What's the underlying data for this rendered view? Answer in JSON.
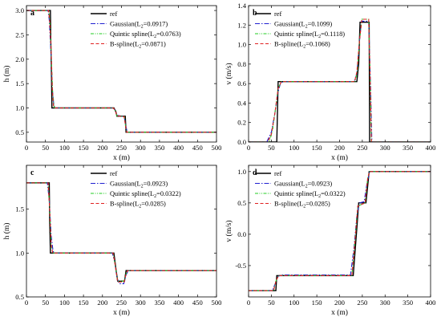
{
  "colors": {
    "ref": "#000000",
    "gaussian": "#1f1fd0",
    "quintic": "#22cc22",
    "bspline": "#e02020"
  },
  "chart_data": [
    {
      "type": "line",
      "panel_label": "a",
      "xlabel": "x (m)",
      "ylabel": "h (m)",
      "xlim": [
        0,
        500
      ],
      "ylim": [
        0.3,
        3.1
      ],
      "xticks": [
        0,
        50,
        100,
        150,
        200,
        250,
        300,
        350,
        400,
        450,
        500
      ],
      "yticks": [
        0.5,
        1.0,
        1.5,
        2.0,
        2.5,
        3.0
      ],
      "ytick_labels": [
        "0.5",
        "1.0",
        "1.5",
        "2.0",
        "2.5",
        "3.0"
      ],
      "legend_position": "top-center",
      "series": [
        {
          "name": "ref",
          "style": "ref",
          "points": [
            [
              0,
              3.0
            ],
            [
              63,
              3.0
            ],
            [
              64,
              2.4
            ],
            [
              66,
              1.6
            ],
            [
              67,
              1.0
            ],
            [
              230,
              1.0
            ],
            [
              235,
              0.93
            ],
            [
              238,
              0.83
            ],
            [
              260,
              0.83
            ],
            [
              262,
              0.5
            ],
            [
              500,
              0.5
            ]
          ]
        },
        {
          "name": "Gaussian",
          "l2": "0.0917",
          "style": "gaussian",
          "points": [
            [
              0,
              3.0
            ],
            [
              57,
              3.0
            ],
            [
              60,
              2.8
            ],
            [
              64,
              2.2
            ],
            [
              68,
              1.4
            ],
            [
              72,
              1.05
            ],
            [
              76,
              1.0
            ],
            [
              227,
              1.0
            ],
            [
              232,
              0.97
            ],
            [
              238,
              0.85
            ],
            [
              257,
              0.82
            ],
            [
              261,
              0.65
            ],
            [
              265,
              0.5
            ],
            [
              500,
              0.5
            ]
          ]
        },
        {
          "name": "Quintic spline",
          "l2": "0.0763",
          "style": "quintic",
          "points": [
            [
              0,
              3.0
            ],
            [
              59,
              3.0
            ],
            [
              62,
              2.7
            ],
            [
              65,
              2.1
            ],
            [
              69,
              1.3
            ],
            [
              73,
              1.02
            ],
            [
              76,
              1.0
            ],
            [
              228,
              1.0
            ],
            [
              233,
              0.96
            ],
            [
              238,
              0.84
            ],
            [
              258,
              0.82
            ],
            [
              261,
              0.6
            ],
            [
              264,
              0.5
            ],
            [
              500,
              0.5
            ]
          ]
        },
        {
          "name": "B-spline",
          "l2": "0.0871",
          "style": "bspline",
          "points": [
            [
              0,
              3.0
            ],
            [
              58,
              3.0
            ],
            [
              61,
              2.8
            ],
            [
              65,
              2.2
            ],
            [
              68,
              1.4
            ],
            [
              71,
              1.05
            ],
            [
              75,
              1.0
            ],
            [
              228,
              1.0
            ],
            [
              233,
              0.96
            ],
            [
              238,
              0.84
            ],
            [
              257,
              0.82
            ],
            [
              261,
              0.62
            ],
            [
              264,
              0.5
            ],
            [
              500,
              0.5
            ]
          ]
        }
      ]
    },
    {
      "type": "line",
      "panel_label": "b",
      "xlabel": "x (m)",
      "ylabel": "v (m/s)",
      "xlim": [
        0,
        400
      ],
      "ylim": [
        0.0,
        1.4
      ],
      "xticks": [
        0,
        50,
        100,
        150,
        200,
        250,
        300,
        350,
        400
      ],
      "yticks": [
        0.0,
        0.2,
        0.4,
        0.6,
        0.8,
        1.0,
        1.2,
        1.4
      ],
      "ytick_labels": [
        "0.0",
        "0.2",
        "0.4",
        "0.6",
        "0.8",
        "1.0",
        "1.2",
        "1.4"
      ],
      "legend_position": "top-left",
      "series": [
        {
          "name": "ref",
          "style": "ref",
          "points": [
            [
              0,
              0
            ],
            [
              62,
              0
            ],
            [
              63,
              0.2
            ],
            [
              65,
              0.62
            ],
            [
              238,
              0.62
            ],
            [
              242,
              0.8
            ],
            [
              245,
              1.23
            ],
            [
              265,
              1.23
            ],
            [
              266,
              0
            ],
            [
              400,
              0
            ]
          ]
        },
        {
          "name": "Gaussian",
          "l2": "0.1099",
          "style": "gaussian",
          "points": [
            [
              0,
              0
            ],
            [
              40,
              0
            ],
            [
              50,
              0.1
            ],
            [
              58,
              0.3
            ],
            [
              64,
              0.5
            ],
            [
              70,
              0.6
            ],
            [
              76,
              0.62
            ],
            [
              232,
              0.62
            ],
            [
              238,
              0.7
            ],
            [
              243,
              1.0
            ],
            [
              248,
              1.24
            ],
            [
              264,
              1.24
            ],
            [
              268,
              0.6
            ],
            [
              271,
              0
            ],
            [
              400,
              0
            ]
          ]
        },
        {
          "name": "Quintic spline",
          "l2": "0.1118",
          "style": "quintic",
          "points": [
            [
              0,
              0
            ],
            [
              45,
              0
            ],
            [
              52,
              0.1
            ],
            [
              58,
              0.3
            ],
            [
              65,
              0.55
            ],
            [
              72,
              0.62
            ],
            [
              234,
              0.62
            ],
            [
              239,
              0.72
            ],
            [
              244,
              1.05
            ],
            [
              249,
              1.26
            ],
            [
              264,
              1.26
            ],
            [
              268,
              0.5
            ],
            [
              270,
              0
            ],
            [
              400,
              0
            ]
          ]
        },
        {
          "name": "B-spline",
          "l2": "0.1068",
          "style": "bspline",
          "points": [
            [
              0,
              0
            ],
            [
              42,
              0
            ],
            [
              50,
              0.08
            ],
            [
              58,
              0.3
            ],
            [
              65,
              0.55
            ],
            [
              72,
              0.62
            ],
            [
              233,
              0.62
            ],
            [
              238,
              0.72
            ],
            [
              244,
              1.05
            ],
            [
              249,
              1.26
            ],
            [
              264,
              1.26
            ],
            [
              268,
              0.5
            ],
            [
              270,
              0
            ],
            [
              400,
              0
            ]
          ]
        }
      ]
    },
    {
      "type": "line",
      "panel_label": "c",
      "xlabel": "x (m)",
      "ylabel": "h (m)",
      "xlim": [
        0,
        500
      ],
      "ylim": [
        0.5,
        2.0
      ],
      "xticks": [
        0,
        50,
        100,
        150,
        200,
        250,
        300,
        350,
        400,
        450,
        500
      ],
      "yticks": [
        0.5,
        1.0,
        1.5
      ],
      "ytick_labels": [
        "0.5",
        "1.0",
        "1.5"
      ],
      "legend_position": "top-center",
      "series": [
        {
          "name": "ref",
          "style": "ref",
          "points": [
            [
              0,
              1.8
            ],
            [
              60,
              1.8
            ],
            [
              61,
              1.4
            ],
            [
              63,
              1.0
            ],
            [
              230,
              1.0
            ],
            [
              236,
              0.8
            ],
            [
              240,
              0.68
            ],
            [
              258,
              0.68
            ],
            [
              262,
              0.8
            ],
            [
              500,
              0.8
            ]
          ]
        },
        {
          "name": "Gaussian",
          "l2": "0.0923",
          "style": "gaussian",
          "points": [
            [
              0,
              1.8
            ],
            [
              55,
              1.8
            ],
            [
              60,
              1.6
            ],
            [
              65,
              1.2
            ],
            [
              70,
              1.02
            ],
            [
              74,
              1.0
            ],
            [
              226,
              1.0
            ],
            [
              232,
              0.9
            ],
            [
              238,
              0.72
            ],
            [
              244,
              0.65
            ],
            [
              256,
              0.65
            ],
            [
              262,
              0.75
            ],
            [
              268,
              0.8
            ],
            [
              500,
              0.8
            ]
          ]
        },
        {
          "name": "Quintic spline",
          "l2": "0.0322",
          "style": "quintic",
          "points": [
            [
              0,
              1.8
            ],
            [
              57,
              1.8
            ],
            [
              61,
              1.5
            ],
            [
              65,
              1.1
            ],
            [
              69,
              1.0
            ],
            [
              228,
              1.0
            ],
            [
              234,
              0.85
            ],
            [
              240,
              0.68
            ],
            [
              257,
              0.68
            ],
            [
              263,
              0.78
            ],
            [
              267,
              0.8
            ],
            [
              500,
              0.8
            ]
          ]
        },
        {
          "name": "B-spline",
          "l2": "0.0285",
          "style": "bspline",
          "points": [
            [
              0,
              1.8
            ],
            [
              57,
              1.8
            ],
            [
              61,
              1.5
            ],
            [
              65,
              1.1
            ],
            [
              69,
              1.0
            ],
            [
              228,
              1.0
            ],
            [
              234,
              0.85
            ],
            [
              240,
              0.67
            ],
            [
              257,
              0.67
            ],
            [
              263,
              0.78
            ],
            [
              267,
              0.8
            ],
            [
              500,
              0.8
            ]
          ]
        }
      ]
    },
    {
      "type": "line",
      "panel_label": "d",
      "xlabel": "x (m)",
      "ylabel": "v (m/s)",
      "xlim": [
        0,
        400
      ],
      "ylim": [
        -1.0,
        1.1
      ],
      "xticks": [
        0,
        50,
        100,
        150,
        200,
        250,
        300,
        350,
        400
      ],
      "yticks": [
        -0.5,
        0.0,
        0.5,
        1.0
      ],
      "ytick_labels": [
        "-0.5",
        "0.0",
        "0.5",
        "1.0"
      ],
      "legend_position": "top-left",
      "series": [
        {
          "name": "ref",
          "style": "ref",
          "points": [
            [
              0,
              -0.9
            ],
            [
              60,
              -0.9
            ],
            [
              62,
              -0.66
            ],
            [
              230,
              -0.66
            ],
            [
              238,
              0.1
            ],
            [
              242,
              0.5
            ],
            [
              258,
              0.5
            ],
            [
              265,
              1.0
            ],
            [
              400,
              1.0
            ]
          ]
        },
        {
          "name": "Gaussian",
          "l2": "0.0923",
          "style": "gaussian",
          "points": [
            [
              0,
              -0.9
            ],
            [
              52,
              -0.9
            ],
            [
              58,
              -0.8
            ],
            [
              65,
              -0.67
            ],
            [
              72,
              -0.65
            ],
            [
              224,
              -0.65
            ],
            [
              232,
              -0.2
            ],
            [
              238,
              0.3
            ],
            [
              244,
              0.5
            ],
            [
              254,
              0.52
            ],
            [
              260,
              0.8
            ],
            [
              266,
              1.0
            ],
            [
              400,
              1.0
            ]
          ]
        },
        {
          "name": "Quintic spline",
          "l2": "0.0322",
          "style": "quintic",
          "points": [
            [
              0,
              -0.9
            ],
            [
              55,
              -0.9
            ],
            [
              60,
              -0.75
            ],
            [
              66,
              -0.66
            ],
            [
              227,
              -0.66
            ],
            [
              234,
              -0.1
            ],
            [
              240,
              0.45
            ],
            [
              256,
              0.5
            ],
            [
              262,
              0.9
            ],
            [
              266,
              1.0
            ],
            [
              400,
              1.0
            ]
          ]
        },
        {
          "name": "B-spline",
          "l2": "0.0285",
          "style": "bspline",
          "points": [
            [
              0,
              -0.9
            ],
            [
              55,
              -0.9
            ],
            [
              60,
              -0.75
            ],
            [
              66,
              -0.66
            ],
            [
              227,
              -0.66
            ],
            [
              234,
              -0.1
            ],
            [
              240,
              0.45
            ],
            [
              256,
              0.5
            ],
            [
              262,
              0.9
            ],
            [
              266,
              1.0
            ],
            [
              400,
              1.0
            ]
          ]
        }
      ]
    }
  ]
}
